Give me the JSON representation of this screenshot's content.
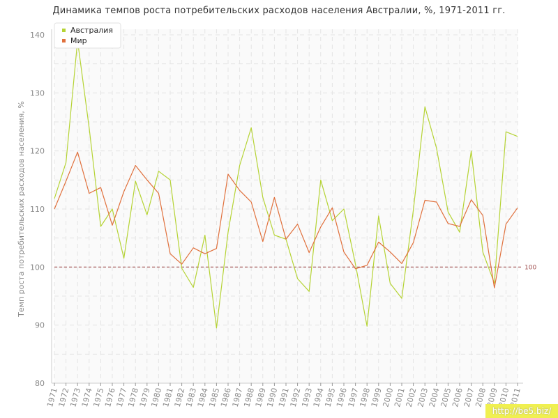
{
  "chart_data": {
    "type": "line",
    "title": "Динамика темпов роста потребительских расходов населения Австралии, %, 1971-2011 гг.",
    "xlabel": "",
    "ylabel": "Темп роста потребительских расходов населения, %",
    "ylim": [
      80,
      140
    ],
    "yticks": [
      80,
      90,
      100,
      110,
      120,
      130,
      140
    ],
    "grid": true,
    "legend_position": "top-left",
    "x": [
      "1971",
      "1972",
      "1973",
      "1974",
      "1975",
      "1976",
      "1977",
      "1978",
      "1979",
      "1980",
      "1981",
      "1982",
      "1983",
      "1984",
      "1985",
      "1986",
      "1987",
      "1988",
      "1989",
      "1990",
      "1991",
      "1992",
      "1993",
      "1994",
      "1995",
      "1996",
      "1997",
      "1998",
      "1999",
      "2000",
      "2001",
      "2002",
      "2003",
      "2004",
      "2005",
      "2006",
      "2007",
      "2008",
      "2009",
      "2010",
      "2011"
    ],
    "series": [
      {
        "name": "Австралия",
        "color": "#b5d334",
        "values": [
          111.8,
          118.0,
          139.0,
          124.0,
          107.0,
          110.0,
          101.5,
          114.8,
          109.0,
          116.5,
          115.0,
          99.8,
          96.5,
          105.5,
          89.5,
          106.0,
          117.5,
          124.0,
          112.0,
          105.5,
          104.8,
          98.0,
          95.8,
          115.0,
          108.0,
          110.0,
          100.5,
          89.8,
          108.8,
          97.2,
          94.6,
          109.8,
          127.6,
          120.5,
          109.5,
          106.0,
          120.0,
          102.6,
          97.2,
          123.3,
          122.5
        ]
      },
      {
        "name": "Мир",
        "color": "#e0703c",
        "values": [
          110.0,
          114.8,
          119.8,
          112.7,
          113.7,
          107.2,
          113.0,
          117.5,
          115.0,
          112.7,
          102.3,
          100.5,
          103.3,
          102.3,
          103.2,
          116.0,
          113.2,
          111.2,
          104.4,
          112.0,
          104.8,
          107.4,
          102.5,
          106.9,
          110.2,
          102.6,
          99.7,
          100.3,
          104.3,
          102.6,
          100.6,
          104.2,
          111.5,
          111.2,
          107.5,
          107.0,
          111.6,
          108.9,
          96.4,
          107.4,
          110.2
        ]
      }
    ],
    "reference_line": {
      "value": 100,
      "label": "100",
      "color": "#a05050"
    }
  },
  "watermark": "http://be5.biz/"
}
